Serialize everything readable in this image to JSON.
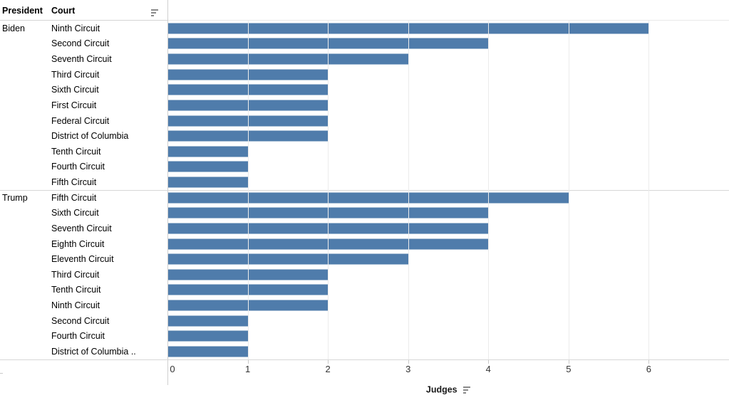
{
  "header": {
    "president_label": "President",
    "court_label": "Court"
  },
  "colors": {
    "bar": "#4f7cab",
    "gridline": "#ececec",
    "border": "#d7d7d7"
  },
  "chart_data": {
    "type": "bar",
    "orientation": "horizontal",
    "title": "",
    "xlabel": "Judges",
    "ylabel": "",
    "xlim": [
      0,
      7
    ],
    "x_ticks": [
      "0",
      "1",
      "2",
      "3",
      "4",
      "5",
      "6"
    ],
    "grid": true,
    "groups": [
      {
        "president": "Biden",
        "rows": [
          {
            "court": "Ninth Circuit",
            "judges": 6
          },
          {
            "court": "Second Circuit",
            "judges": 4
          },
          {
            "court": "Seventh Circuit",
            "judges": 3
          },
          {
            "court": "Third Circuit",
            "judges": 2
          },
          {
            "court": "Sixth Circuit",
            "judges": 2
          },
          {
            "court": "First Circuit",
            "judges": 2
          },
          {
            "court": "Federal Circuit",
            "judges": 2
          },
          {
            "court": "District of Columbia",
            "judges": 2
          },
          {
            "court": "Tenth Circuit",
            "judges": 1
          },
          {
            "court": "Fourth Circuit",
            "judges": 1
          },
          {
            "court": "Fifth Circuit",
            "judges": 1
          }
        ]
      },
      {
        "president": "Trump",
        "rows": [
          {
            "court": "Fifth Circuit",
            "judges": 5
          },
          {
            "court": "Sixth Circuit",
            "judges": 4
          },
          {
            "court": "Seventh Circuit",
            "judges": 4
          },
          {
            "court": "Eighth Circuit",
            "judges": 4
          },
          {
            "court": "Eleventh Circuit",
            "judges": 3
          },
          {
            "court": "Third Circuit",
            "judges": 2
          },
          {
            "court": "Tenth Circuit",
            "judges": 2
          },
          {
            "court": "Ninth Circuit",
            "judges": 2
          },
          {
            "court": "Second Circuit",
            "judges": 1
          },
          {
            "court": "Fourth Circuit",
            "judges": 1
          },
          {
            "court": "District of Columbia ..",
            "judges": 1
          }
        ]
      }
    ]
  }
}
